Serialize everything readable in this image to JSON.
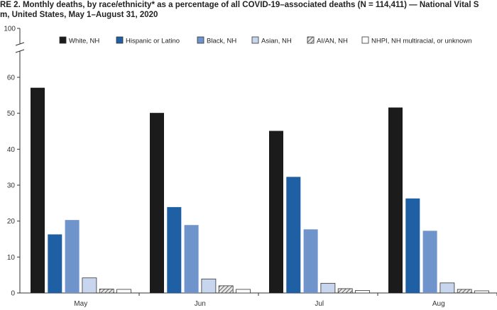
{
  "title_line1": "RE 2. Monthly deaths, by race/ethnicity* as a percentage of all COVID-19–associated deaths (N = 114,411) — National Vital S",
  "title_line2": "m, United States, May 1–August 31, 2020",
  "chart_data": {
    "type": "bar",
    "categories": [
      "May",
      "Jun",
      "Jul",
      "Aug"
    ],
    "series": [
      {
        "name": "White, NH",
        "values": [
          57.1,
          50.1,
          45.1,
          51.6
        ],
        "color": "#1b1b1b",
        "pattern": "solid"
      },
      {
        "name": "Hispanic or Latino",
        "values": [
          16.3,
          23.9,
          32.3,
          26.3
        ],
        "color": "#1f5fa3",
        "pattern": "solid"
      },
      {
        "name": "Black, NH",
        "values": [
          20.3,
          18.9,
          17.7,
          17.3
        ],
        "color": "#6f93cb",
        "pattern": "solid"
      },
      {
        "name": "Asian, NH",
        "values": [
          4.2,
          3.9,
          2.7,
          2.8
        ],
        "color": "#c7d6ee",
        "pattern": "solid"
      },
      {
        "name": "AI/AN, NH",
        "values": [
          1.1,
          2.0,
          1.2,
          1.0
        ],
        "color": "#b8b8b8",
        "pattern": "hatch"
      },
      {
        "name": "NHPI, NH multiracial, or unknown",
        "values": [
          1.0,
          1.0,
          0.7,
          0.6
        ],
        "color": "#ffffff",
        "pattern": "outline"
      }
    ],
    "y_ticks": [
      "0",
      "10",
      "20",
      "30",
      "40",
      "50",
      "60"
    ],
    "y_break_label": "100",
    "ylim": [
      0,
      70
    ],
    "axis_break": true,
    "legend_position": "top",
    "grid": false
  }
}
